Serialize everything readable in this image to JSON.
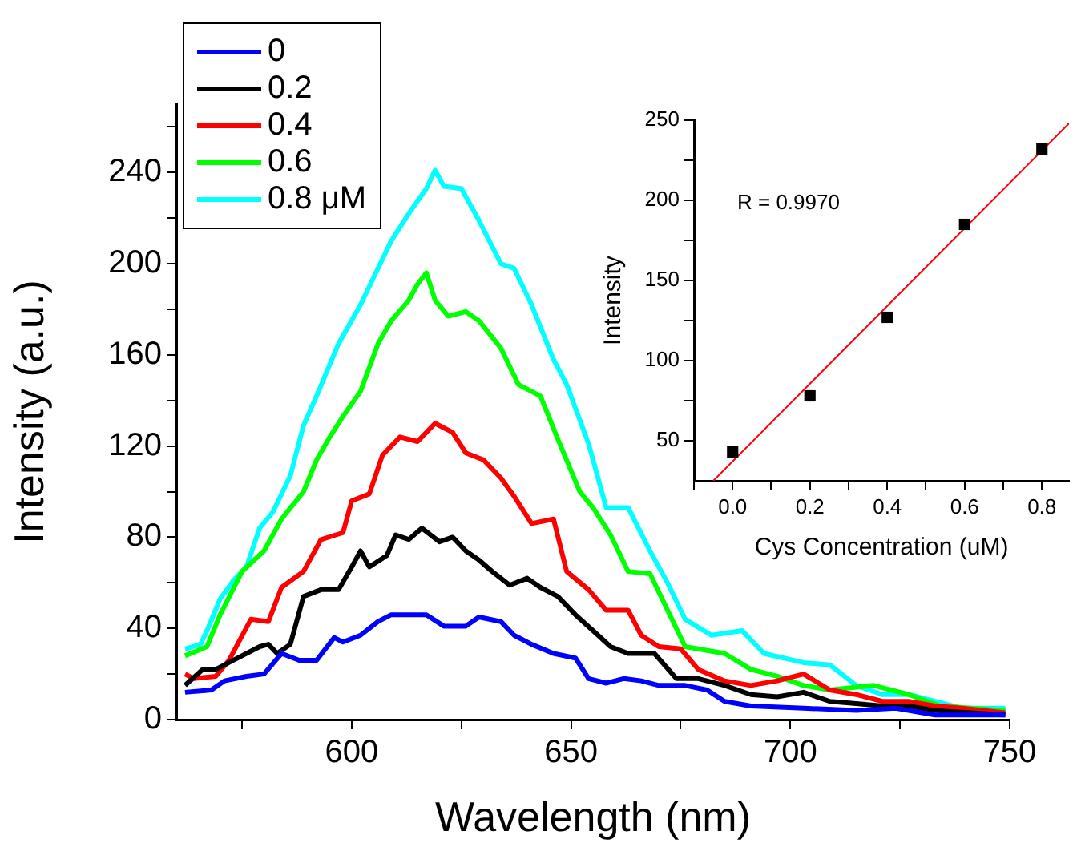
{
  "chart_data": [
    {
      "type": "line",
      "xlabel": "Wavelength (nm)",
      "ylabel": "Intensity (a.u.)",
      "xlim": [
        560,
        750
      ],
      "xticks": [
        {
          "value": 575,
          "label": null
        },
        600,
        {
          "value": 625,
          "label": null
        },
        650,
        {
          "value": 675,
          "label": null
        },
        700,
        {
          "value": 725,
          "label": null
        },
        750
      ],
      "ylim": [
        0,
        270
      ],
      "yticks": [
        0,
        {
          "value": 20,
          "label": null
        },
        40,
        {
          "value": 60,
          "label": null
        },
        80,
        {
          "value": 100,
          "label": null
        },
        120,
        {
          "value": 140,
          "label": null
        },
        160,
        {
          "value": 180,
          "label": null
        },
        200,
        {
          "value": 220,
          "label": null
        },
        240,
        {
          "value": 260,
          "label": null
        }
      ],
      "grid": false,
      "legend": "top left",
      "marker": "none",
      "line_style": "solid",
      "series": [
        {
          "name": "0",
          "color": "#0000ff",
          "x": [
            562,
            568,
            571,
            576,
            580,
            584,
            588,
            592,
            596,
            598,
            602,
            606,
            609,
            613,
            617,
            621,
            626,
            629,
            634,
            637,
            641,
            646,
            651,
            654,
            658,
            662,
            666,
            670,
            676,
            681,
            685,
            691,
            703,
            715,
            724,
            733,
            749
          ],
          "values": [
            12,
            13,
            17,
            19,
            20,
            29,
            26,
            26,
            36,
            34,
            37,
            43,
            46,
            46,
            46,
            41,
            41,
            45,
            43,
            37,
            33,
            29,
            27,
            18,
            16,
            18,
            17,
            15,
            15,
            13,
            8,
            6,
            5,
            4,
            5,
            2,
            2
          ]
        },
        {
          "name": "0.2",
          "color": "#000000",
          "x": [
            562,
            566,
            569,
            574,
            579,
            581,
            583,
            586,
            589,
            593,
            597,
            600,
            602,
            604,
            608,
            610,
            613,
            616,
            620,
            623,
            626,
            629,
            632,
            636,
            640,
            643,
            647,
            651,
            655,
            659,
            663,
            669,
            674,
            679,
            685,
            691,
            697,
            703,
            709,
            715,
            721,
            727,
            733,
            749
          ],
          "values": [
            15,
            22,
            22,
            27,
            32,
            33,
            29,
            33,
            54,
            57,
            57,
            67,
            74,
            67,
            72,
            81,
            79,
            84,
            78,
            80,
            74,
            70,
            65,
            59,
            62,
            58,
            54,
            46,
            39,
            32,
            29,
            29,
            18,
            18,
            15,
            11,
            10,
            12,
            8,
            7,
            6,
            6,
            4,
            2
          ]
        },
        {
          "name": "0.4",
          "color": "#ff0000",
          "x": [
            562,
            564,
            569,
            572,
            577,
            581,
            584,
            589,
            593,
            598,
            600,
            604,
            607,
            611,
            615,
            619,
            623,
            626,
            630,
            634,
            637,
            641,
            646,
            649,
            654,
            658,
            663,
            666,
            670,
            675,
            679,
            685,
            691,
            697,
            703,
            709,
            715,
            721,
            727,
            733,
            739,
            749
          ],
          "values": [
            20,
            18,
            19,
            26,
            44,
            43,
            58,
            65,
            79,
            82,
            96,
            99,
            116,
            124,
            122,
            130,
            126,
            117,
            114,
            106,
            98,
            86,
            88,
            65,
            57,
            48,
            48,
            37,
            32,
            31,
            22,
            17,
            15,
            17,
            20,
            13,
            11,
            8,
            8,
            6,
            5,
            3
          ]
        },
        {
          "name": "0.6",
          "color": "#00ff00",
          "x": [
            562,
            567,
            570,
            575,
            580,
            584,
            589,
            592,
            595,
            598,
            602,
            606,
            609,
            613,
            615,
            617,
            619,
            622,
            626,
            629,
            634,
            638,
            643,
            647,
            652,
            655,
            659,
            663,
            668,
            672,
            676,
            685,
            691,
            697,
            703,
            709,
            719,
            727,
            734,
            749
          ],
          "values": [
            28,
            32,
            46,
            65,
            74,
            88,
            100,
            114,
            124,
            133,
            144,
            165,
            175,
            184,
            191,
            196,
            184,
            177,
            179,
            175,
            163,
            147,
            142,
            123,
            100,
            93,
            81,
            65,
            64,
            48,
            32,
            29,
            22,
            19,
            15,
            13,
            15,
            11,
            6,
            4
          ]
        },
        {
          "name": "0.8 μM",
          "color": "#00ffff",
          "x": [
            562,
            565.5,
            567,
            570,
            573,
            576,
            579,
            582,
            586,
            589,
            592,
            597,
            602,
            606,
            609,
            613,
            617,
            619,
            621,
            625,
            629,
            634,
            637,
            641,
            646,
            649,
            654,
            658,
            663,
            668,
            672,
            676,
            682,
            689,
            694,
            703,
            709,
            715,
            721,
            727,
            733,
            739,
            749
          ],
          "values": [
            31,
            33,
            39,
            53,
            61,
            67,
            84,
            91,
            107,
            129,
            142,
            165,
            182,
            198,
            210,
            222,
            233,
            241,
            234,
            233,
            219,
            200,
            198,
            182,
            158,
            147,
            121,
            93,
            93,
            74,
            60,
            44,
            37,
            39,
            29,
            25,
            24,
            15,
            11,
            11,
            8,
            5,
            5
          ]
        }
      ]
    },
    {
      "type": "scatter",
      "xlabel": "Cys Concentration (uM)",
      "ylabel": "Intensity",
      "xlim": [
        -0.1,
        0.87
      ],
      "xticks": [
        {
          "value": -0.1,
          "label": null
        },
        {
          "value": 0,
          "label": "0.0"
        },
        {
          "value": 0.1,
          "label": null
        },
        0.2,
        {
          "value": 0.3,
          "label": null
        },
        0.4,
        {
          "value": 0.5,
          "label": null
        },
        0.6,
        {
          "value": 0.7,
          "label": null
        },
        0.8
      ],
      "ylim": [
        25,
        250
      ],
      "yticks": [
        50,
        {
          "value": 75,
          "label": null
        },
        100,
        {
          "value": 125,
          "label": null
        },
        150,
        {
          "value": 175,
          "label": null
        },
        200,
        {
          "value": 225,
          "label": null
        },
        250
      ],
      "grid": false,
      "marker": "square",
      "annotations": [
        "R = 0.9970"
      ],
      "series": [
        {
          "color": "#000000",
          "x": [
            0,
            0.2,
            0.4,
            0.6,
            0.8
          ],
          "values": [
            43,
            78,
            127,
            185,
            232
          ]
        },
        {
          "type": "line",
          "marker": "none",
          "color": "#ff0000",
          "x": [
            -0.05,
            0.87
          ],
          "values": [
            25,
            248
          ]
        }
      ]
    }
  ]
}
